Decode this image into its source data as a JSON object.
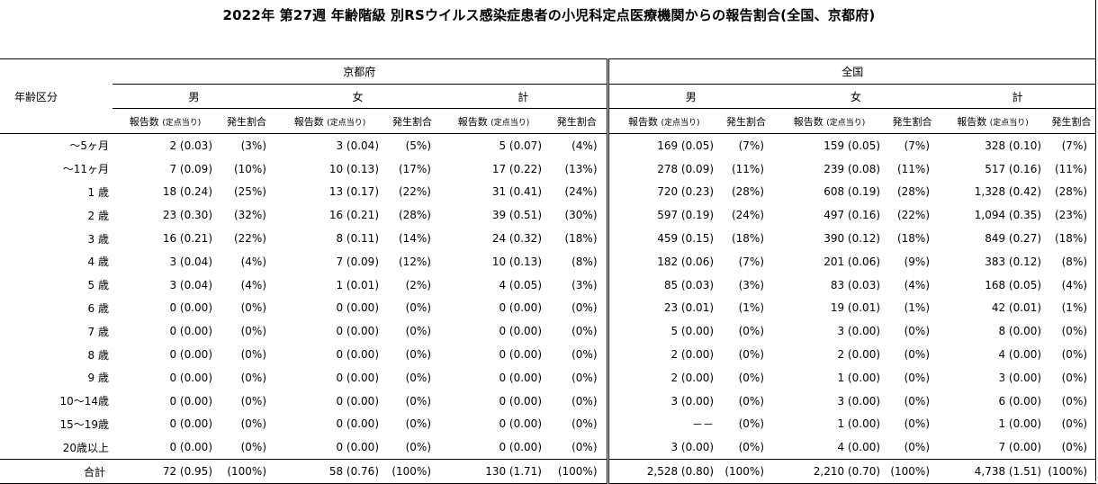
{
  "title": "2022年 第27週 年齢階級 別RSウイルス感染症患者の小児科定点医療機関からの報告割合(全国、京都府)",
  "row_header": "年齢区分",
  "regions": [
    "京都府",
    "全国"
  ],
  "sexes": [
    "男",
    "女",
    "計"
  ],
  "col_count_label": "報告数",
  "col_count_note": "(定点当り)",
  "col_pct_label": "発生割合",
  "rows": [
    {
      "label": "～5ヶ月",
      "cells": [
        [
          "2 (0.03)",
          "(3%)"
        ],
        [
          "3 (0.04)",
          "(5%)"
        ],
        [
          "5 (0.07)",
          "(4%)"
        ],
        [
          "169 (0.05)",
          "(7%)"
        ],
        [
          "159 (0.05)",
          "(7%)"
        ],
        [
          "328 (0.10)",
          "(7%)"
        ]
      ]
    },
    {
      "label": "～11ヶ月",
      "cells": [
        [
          "7 (0.09)",
          "(10%)"
        ],
        [
          "10 (0.13)",
          "(17%)"
        ],
        [
          "17 (0.22)",
          "(13%)"
        ],
        [
          "278 (0.09)",
          "(11%)"
        ],
        [
          "239 (0.08)",
          "(11%)"
        ],
        [
          "517 (0.16)",
          "(11%)"
        ]
      ]
    },
    {
      "label": "1 歳",
      "cells": [
        [
          "18 (0.24)",
          "(25%)"
        ],
        [
          "13 (0.17)",
          "(22%)"
        ],
        [
          "31 (0.41)",
          "(24%)"
        ],
        [
          "720 (0.23)",
          "(28%)"
        ],
        [
          "608 (0.19)",
          "(28%)"
        ],
        [
          "1,328 (0.42)",
          "(28%)"
        ]
      ]
    },
    {
      "label": "2 歳",
      "cells": [
        [
          "23 (0.30)",
          "(32%)"
        ],
        [
          "16 (0.21)",
          "(28%)"
        ],
        [
          "39 (0.51)",
          "(30%)"
        ],
        [
          "597 (0.19)",
          "(24%)"
        ],
        [
          "497 (0.16)",
          "(22%)"
        ],
        [
          "1,094 (0.35)",
          "(23%)"
        ]
      ]
    },
    {
      "label": "3 歳",
      "cells": [
        [
          "16 (0.21)",
          "(22%)"
        ],
        [
          "8 (0.11)",
          "(14%)"
        ],
        [
          "24 (0.32)",
          "(18%)"
        ],
        [
          "459 (0.15)",
          "(18%)"
        ],
        [
          "390 (0.12)",
          "(18%)"
        ],
        [
          "849 (0.27)",
          "(18%)"
        ]
      ]
    },
    {
      "label": "4 歳",
      "cells": [
        [
          "3 (0.04)",
          "(4%)"
        ],
        [
          "7 (0.09)",
          "(12%)"
        ],
        [
          "10 (0.13)",
          "(8%)"
        ],
        [
          "182 (0.06)",
          "(7%)"
        ],
        [
          "201 (0.06)",
          "(9%)"
        ],
        [
          "383 (0.12)",
          "(8%)"
        ]
      ]
    },
    {
      "label": "5 歳",
      "cells": [
        [
          "3 (0.04)",
          "(4%)"
        ],
        [
          "1 (0.01)",
          "(2%)"
        ],
        [
          "4 (0.05)",
          "(3%)"
        ],
        [
          "85 (0.03)",
          "(3%)"
        ],
        [
          "83 (0.03)",
          "(4%)"
        ],
        [
          "168 (0.05)",
          "(4%)"
        ]
      ]
    },
    {
      "label": "6 歳",
      "cells": [
        [
          "0 (0.00)",
          "(0%)"
        ],
        [
          "0 (0.00)",
          "(0%)"
        ],
        [
          "0 (0.00)",
          "(0%)"
        ],
        [
          "23 (0.01)",
          "(1%)"
        ],
        [
          "19 (0.01)",
          "(1%)"
        ],
        [
          "42 (0.01)",
          "(1%)"
        ]
      ]
    },
    {
      "label": "7 歳",
      "cells": [
        [
          "0 (0.00)",
          "(0%)"
        ],
        [
          "0 (0.00)",
          "(0%)"
        ],
        [
          "0 (0.00)",
          "(0%)"
        ],
        [
          "5 (0.00)",
          "(0%)"
        ],
        [
          "3 (0.00)",
          "(0%)"
        ],
        [
          "8 (0.00)",
          "(0%)"
        ]
      ]
    },
    {
      "label": "8 歳",
      "cells": [
        [
          "0 (0.00)",
          "(0%)"
        ],
        [
          "0 (0.00)",
          "(0%)"
        ],
        [
          "0 (0.00)",
          "(0%)"
        ],
        [
          "2 (0.00)",
          "(0%)"
        ],
        [
          "2 (0.00)",
          "(0%)"
        ],
        [
          "4 (0.00)",
          "(0%)"
        ]
      ]
    },
    {
      "label": "9 歳",
      "cells": [
        [
          "0 (0.00)",
          "(0%)"
        ],
        [
          "0 (0.00)",
          "(0%)"
        ],
        [
          "0 (0.00)",
          "(0%)"
        ],
        [
          "2 (0.00)",
          "(0%)"
        ],
        [
          "1 (0.00)",
          "(0%)"
        ],
        [
          "3 (0.00)",
          "(0%)"
        ]
      ]
    },
    {
      "label": "10～14歳",
      "cells": [
        [
          "0 (0.00)",
          "(0%)"
        ],
        [
          "0 (0.00)",
          "(0%)"
        ],
        [
          "0 (0.00)",
          "(0%)"
        ],
        [
          "3 (0.00)",
          "(0%)"
        ],
        [
          "3 (0.00)",
          "(0%)"
        ],
        [
          "6 (0.00)",
          "(0%)"
        ]
      ]
    },
    {
      "label": "15～19歳",
      "cells": [
        [
          "0 (0.00)",
          "(0%)"
        ],
        [
          "0 (0.00)",
          "(0%)"
        ],
        [
          "0 (0.00)",
          "(0%)"
        ],
        [
          "－－",
          "(0%)"
        ],
        [
          "1 (0.00)",
          "(0%)"
        ],
        [
          "1 (0.00)",
          "(0%)"
        ]
      ]
    },
    {
      "label": "20歳以上",
      "cells": [
        [
          "0 (0.00)",
          "(0%)"
        ],
        [
          "0 (0.00)",
          "(0%)"
        ],
        [
          "0 (0.00)",
          "(0%)"
        ],
        [
          "3 (0.00)",
          "(0%)"
        ],
        [
          "4 (0.00)",
          "(0%)"
        ],
        [
          "7 (0.00)",
          "(0%)"
        ]
      ]
    }
  ],
  "total": {
    "label": "合計",
    "cells": [
      [
        "72 (0.95)",
        "(100%)"
      ],
      [
        "58 (0.76)",
        "(100%)"
      ],
      [
        "130 (1.71)",
        "(100%)"
      ],
      [
        "2,528 (0.80)",
        "(100%)"
      ],
      [
        "2,210 (0.70)",
        "(100%)"
      ],
      [
        "4,738 (1.51)",
        "(100%)"
      ]
    ]
  }
}
